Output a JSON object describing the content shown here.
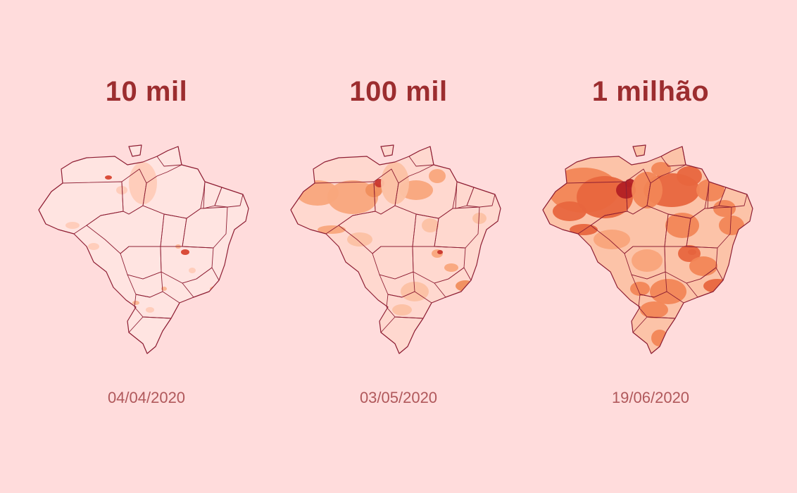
{
  "panels": [
    {
      "milestone": "10 mil",
      "date": "04/04/2020",
      "colors": {
        "base": "#ffe4e1",
        "low": "#ffcbb8",
        "mid": "#fbb48f",
        "high": "#f5a06f",
        "top": "#d8432f",
        "border": "#8e1f34"
      }
    },
    {
      "milestone": "100 mil",
      "date": "03/05/2020",
      "colors": {
        "base": "#ffd8cf",
        "low": "#fcc1a3",
        "mid": "#f9a77c",
        "high": "#f08e5c",
        "top": "#c8362d",
        "border": "#8e1f34"
      }
    },
    {
      "milestone": "1 milhão",
      "date": "19/06/2020",
      "colors": {
        "base": "#fcc3a8",
        "low": "#f9a47a",
        "mid": "#f28656",
        "high": "#e8663e",
        "top": "#b32024",
        "border": "#8e1f34"
      }
    }
  ]
}
